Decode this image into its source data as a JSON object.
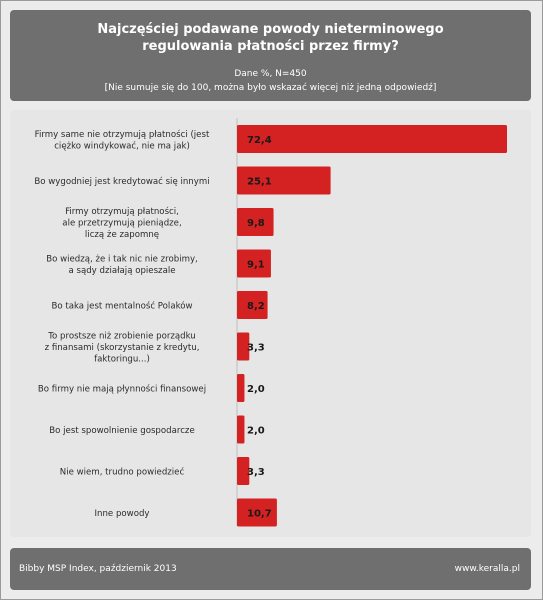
{
  "title_lines": [
    "Najczęściej podawane powody nieterminowego",
    "regulowania płatności przez firmy?"
  ],
  "subtitle_lines": [
    "Dane %, N=450",
    "[Nie sumuje się do 100, można było wskazać więcej niż jedną odpowiedź]"
  ],
  "footer": {
    "source": "Bibby MSP Index, październik 2013",
    "website": "www.keralla.pl"
  },
  "colors": {
    "bar": "#d42121",
    "header_bg": "#6f6f6f",
    "panel_bg": "#e6e6e6"
  },
  "chart_data": {
    "type": "bar",
    "orientation": "horizontal",
    "categories": [
      [
        "Firmy same nie otrzymują płatności (jest",
        "ciężko windykować, nie ma jak)"
      ],
      [
        "Bo wygodniej jest kredytować się innymi"
      ],
      [
        "Firmy otrzymują płatności,",
        "ale przetrzymują pieniądze,",
        "liczą że zapomnę"
      ],
      [
        "Bo wiedzą, że i tak nic nie zrobimy,",
        "a sądy działają opieszale"
      ],
      [
        "Bo taka jest mentalność Polaków"
      ],
      [
        "To prostsze niż zrobienie porządku",
        "z finansami (skorzystanie z kredytu,",
        "faktoringu...)"
      ],
      [
        "Bo firmy nie mają płynności finansowej"
      ],
      [
        "Bo jest spowolnienie gospodarcze"
      ],
      [
        "Nie wiem, trudno powiedzieć"
      ],
      [
        "Inne powody"
      ]
    ],
    "values": [
      72.4,
      25.1,
      9.8,
      9.1,
      8.2,
      3.3,
      2.0,
      2.0,
      3.3,
      10.7
    ],
    "value_labels": [
      "72,4",
      "25,1",
      "9,8",
      "9,1",
      "8,2",
      "3,3",
      "2,0",
      "2,0",
      "3,3",
      "10,7"
    ],
    "xlim": [
      0,
      75
    ],
    "grid": false,
    "legend": "none"
  }
}
